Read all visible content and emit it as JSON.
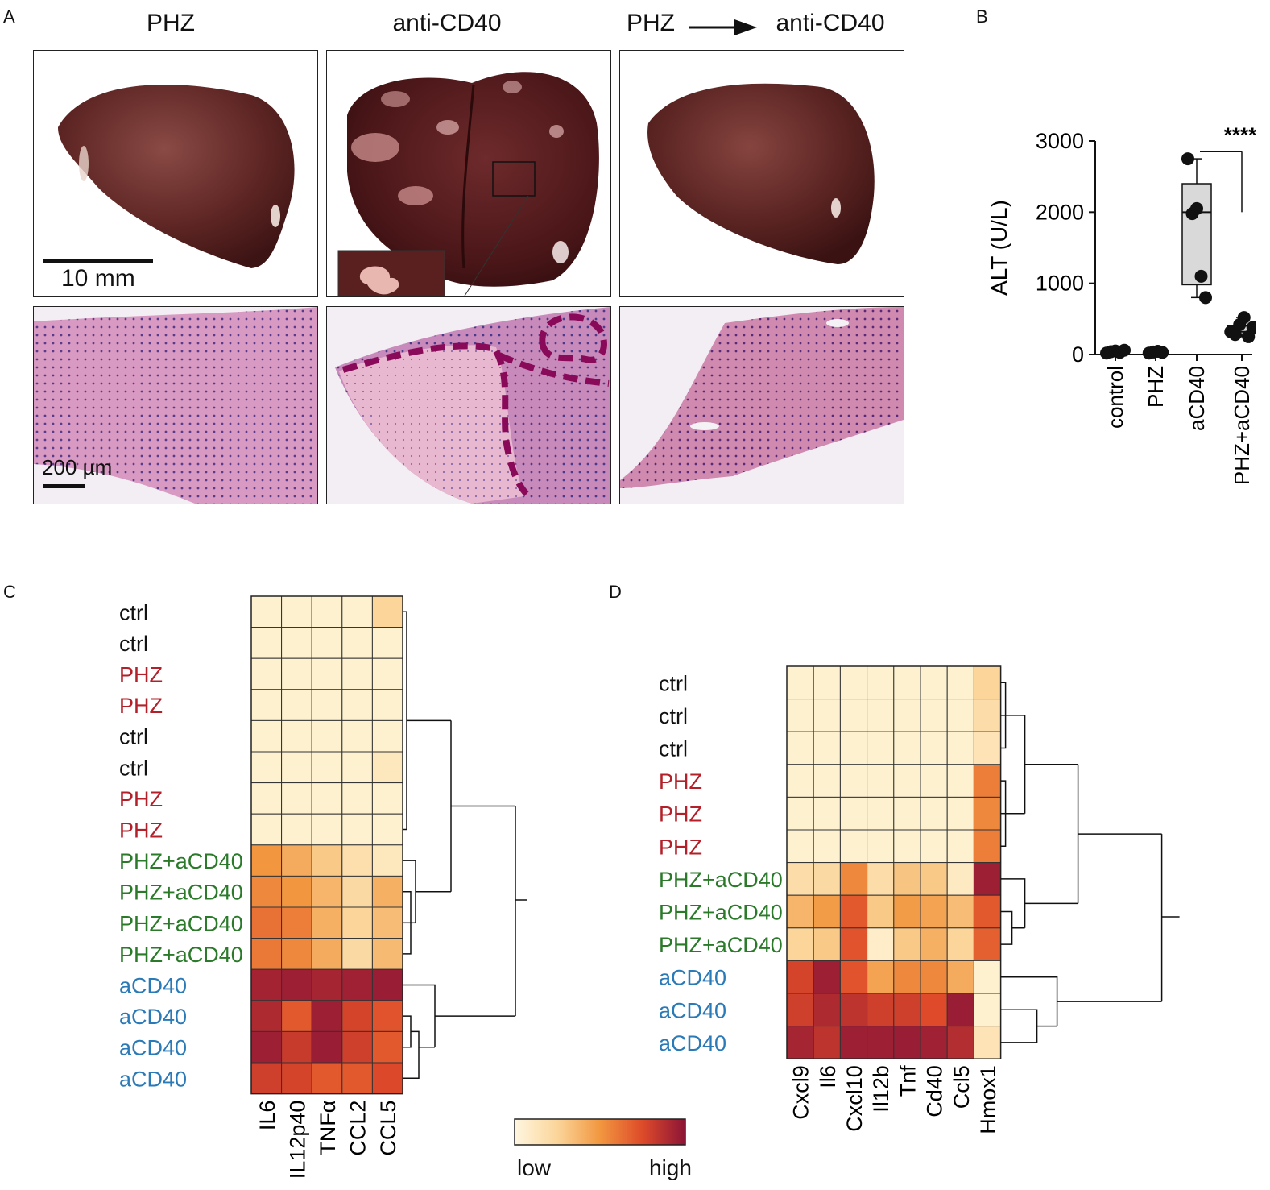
{
  "panel_letters": {
    "a": "A",
    "b": "B",
    "c": "C",
    "d": "D"
  },
  "panel_a": {
    "column_titles": {
      "phz": "PHZ",
      "anti": "anti-CD40",
      "combo_left": "PHZ",
      "combo_right": "anti-CD40"
    },
    "scale_bar_macro": "10 mm",
    "scale_bar_micro": "200 µm"
  },
  "chart_data": [
    {
      "id": "B",
      "type": "box",
      "title": "",
      "ylabel": "ALT (U/L)",
      "ylim": [
        0,
        3000
      ],
      "yticks": [
        0,
        1000,
        2000,
        3000
      ],
      "categories": [
        "control",
        "PHZ",
        "aCD40",
        "PHZ+aCD40"
      ],
      "points": [
        [
          20,
          40,
          50,
          30,
          60
        ],
        [
          20,
          35,
          45,
          30
        ],
        [
          2750,
          1980,
          2050,
          1100,
          800
        ],
        [
          320,
          280,
          420,
          520,
          250,
          380
        ]
      ],
      "boxes": [
        null,
        null,
        {
          "min": 800,
          "q1": 980,
          "median": 2000,
          "q3": 2400,
          "max": 2750
        },
        {
          "min": 250,
          "q1": 290,
          "median": 320,
          "q3": 400,
          "max": 520
        }
      ],
      "significance": {
        "label": "****",
        "from": "aCD40",
        "to": "PHZ+aCD40"
      }
    },
    {
      "id": "C",
      "type": "heatmap",
      "columns": [
        "IL6",
        "IL12p40",
        "TNFα",
        "CCL2",
        "CCL5"
      ],
      "rows": [
        "ctrl",
        "ctrl",
        "PHZ",
        "PHZ",
        "ctrl",
        "ctrl",
        "PHZ",
        "PHZ",
        "PHZ+aCD40",
        "PHZ+aCD40",
        "PHZ+aCD40",
        "PHZ+aCD40",
        "aCD40",
        "aCD40",
        "aCD40",
        "aCD40"
      ],
      "values": [
        [
          0.05,
          0.05,
          0.05,
          0.05,
          0.25
        ],
        [
          0.05,
          0.05,
          0.05,
          0.05,
          0.05
        ],
        [
          0.05,
          0.05,
          0.05,
          0.05,
          0.05
        ],
        [
          0.05,
          0.05,
          0.05,
          0.05,
          0.05
        ],
        [
          0.05,
          0.05,
          0.05,
          0.05,
          0.05
        ],
        [
          0.05,
          0.05,
          0.05,
          0.05,
          0.12
        ],
        [
          0.05,
          0.05,
          0.05,
          0.05,
          0.05
        ],
        [
          0.05,
          0.05,
          0.05,
          0.05,
          0.05
        ],
        [
          0.5,
          0.42,
          0.3,
          0.18,
          0.12
        ],
        [
          0.55,
          0.5,
          0.38,
          0.22,
          0.4
        ],
        [
          0.62,
          0.58,
          0.4,
          0.25,
          0.35
        ],
        [
          0.6,
          0.55,
          0.42,
          0.22,
          0.36
        ],
        [
          0.93,
          0.95,
          0.92,
          0.94,
          0.96
        ],
        [
          0.9,
          0.7,
          0.95,
          0.78,
          0.72
        ],
        [
          0.95,
          0.82,
          0.96,
          0.8,
          0.7
        ],
        [
          0.8,
          0.78,
          0.7,
          0.7,
          0.76
        ]
      ]
    },
    {
      "id": "D",
      "type": "heatmap",
      "columns": [
        "Cxcl9",
        "Il6",
        "Cxcl10",
        "Il12b",
        "Tnf",
        "Cd40",
        "Ccl5",
        "Hmox1"
      ],
      "rows": [
        "ctrl",
        "ctrl",
        "ctrl",
        "PHZ",
        "PHZ",
        "PHZ",
        "PHZ+aCD40",
        "PHZ+aCD40",
        "PHZ+aCD40",
        "aCD40",
        "aCD40",
        "aCD40"
      ],
      "values": [
        [
          0.05,
          0.05,
          0.05,
          0.05,
          0.05,
          0.05,
          0.05,
          0.25
        ],
        [
          0.05,
          0.05,
          0.05,
          0.05,
          0.05,
          0.05,
          0.05,
          0.2
        ],
        [
          0.05,
          0.05,
          0.05,
          0.05,
          0.05,
          0.05,
          0.05,
          0.15
        ],
        [
          0.05,
          0.05,
          0.05,
          0.05,
          0.05,
          0.05,
          0.05,
          0.58
        ],
        [
          0.05,
          0.05,
          0.05,
          0.05,
          0.05,
          0.05,
          0.05,
          0.55
        ],
        [
          0.05,
          0.05,
          0.05,
          0.05,
          0.05,
          0.05,
          0.05,
          0.58
        ],
        [
          0.2,
          0.22,
          0.55,
          0.2,
          0.32,
          0.3,
          0.1,
          0.95
        ],
        [
          0.38,
          0.48,
          0.7,
          0.3,
          0.48,
          0.45,
          0.35,
          0.7
        ],
        [
          0.25,
          0.3,
          0.72,
          0.08,
          0.3,
          0.4,
          0.25,
          0.68
        ],
        [
          0.78,
          0.95,
          0.72,
          0.45,
          0.55,
          0.55,
          0.42,
          0.05
        ],
        [
          0.8,
          0.9,
          0.85,
          0.8,
          0.8,
          0.75,
          0.96,
          0.05
        ],
        [
          0.92,
          0.85,
          0.95,
          0.95,
          0.96,
          0.94,
          0.88,
          0.15
        ]
      ]
    }
  ],
  "legend": {
    "low": "low",
    "high": "high"
  }
}
